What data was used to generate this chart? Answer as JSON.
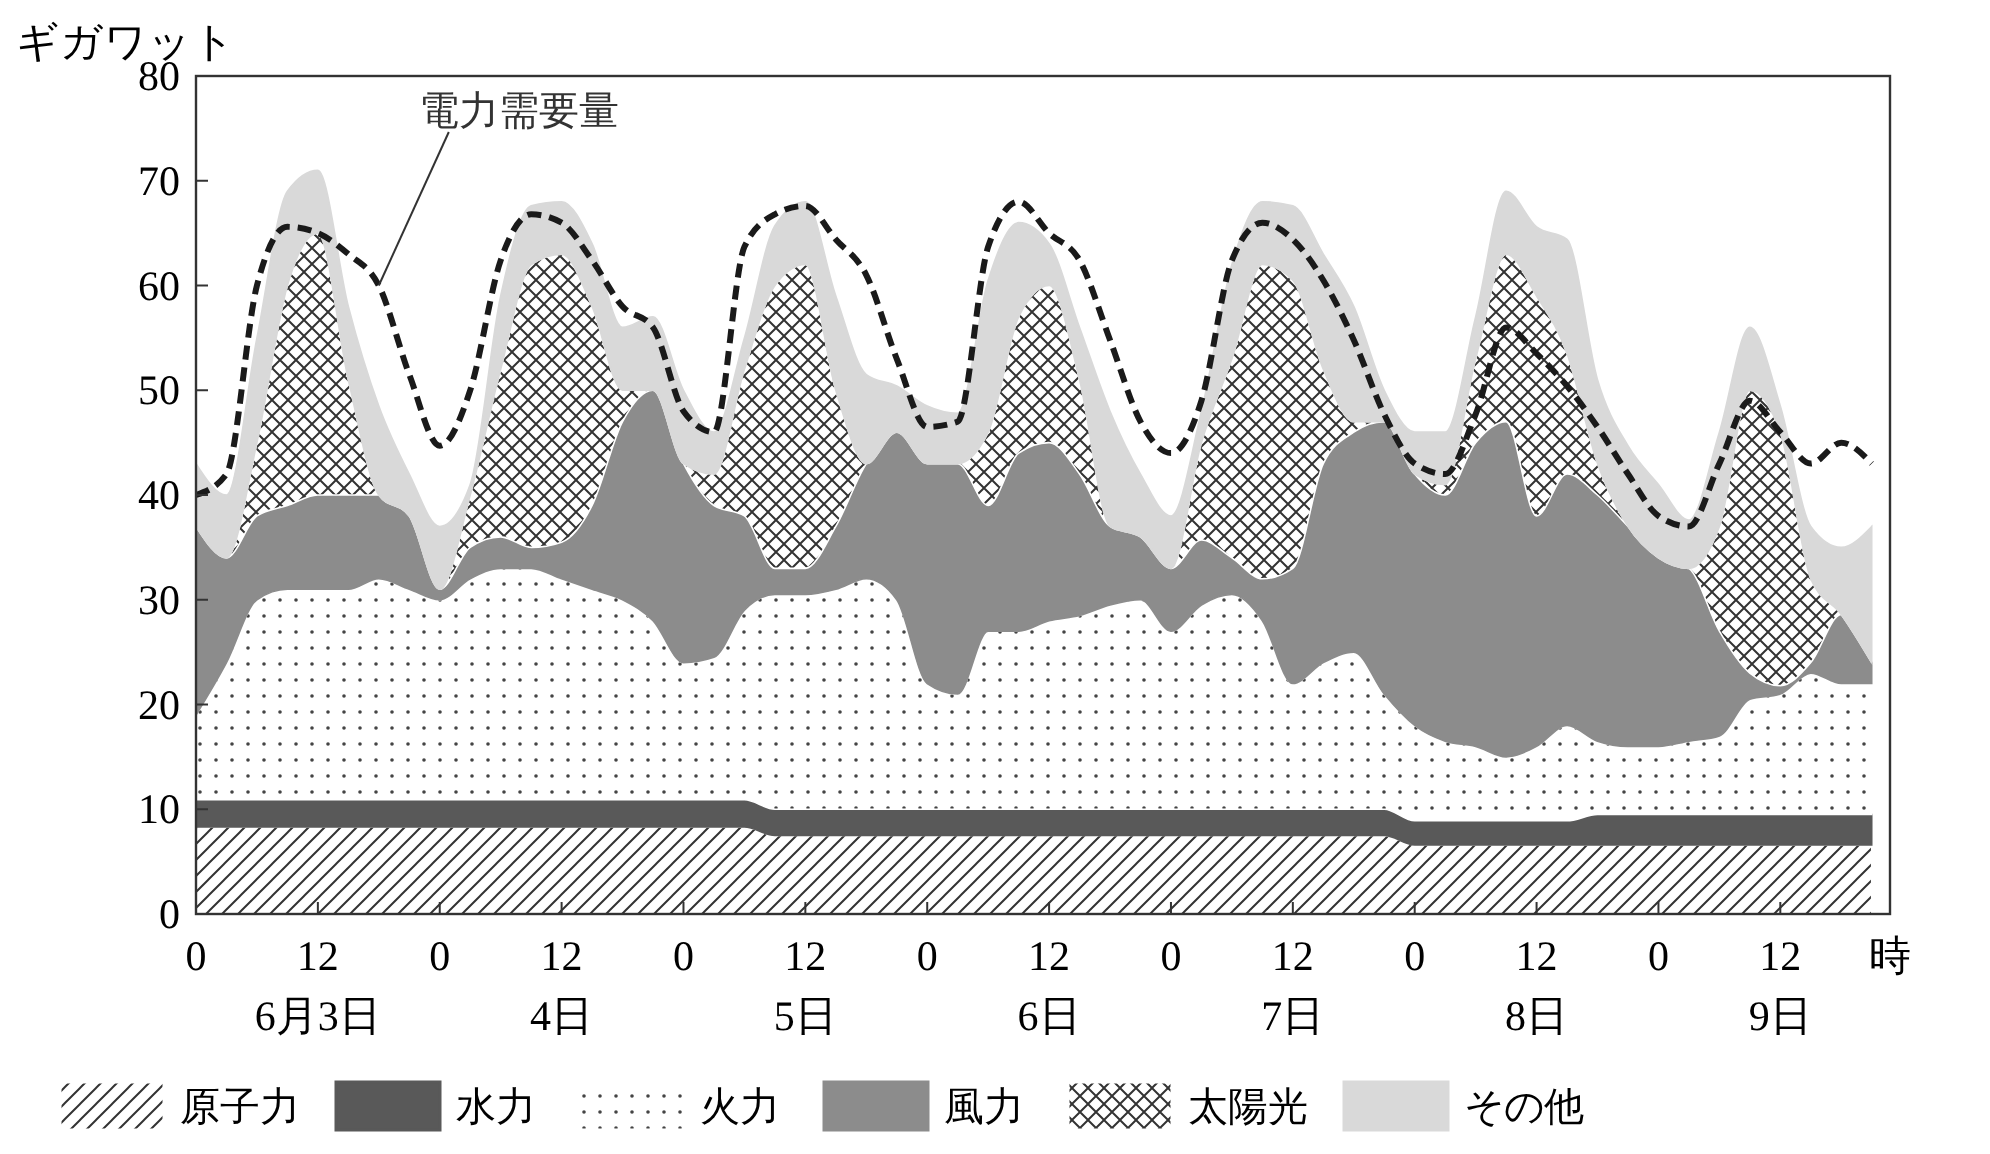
{
  "chart_data": {
    "type": "area",
    "stacked": true,
    "ylabel": "ギガワット",
    "xlabel": "時",
    "categories": [
      "0",
      null,
      null,
      null,
      "12\n6月3日",
      null,
      null,
      null,
      "0",
      null,
      null,
      null,
      "12\n4日",
      null,
      null,
      null,
      "0",
      null,
      null,
      null,
      "12\n5日",
      null,
      null,
      null,
      "0",
      null,
      null,
      null,
      "12\n6日",
      null,
      null,
      null,
      "0",
      null,
      null,
      null,
      "12\n7日",
      null,
      null,
      null,
      "0",
      null,
      null,
      null,
      "12\n8日",
      null,
      null,
      null,
      "0",
      null,
      null,
      null,
      "12\n9日",
      null,
      null,
      null
    ],
    "ylim": [
      0,
      80
    ],
    "yticks": [
      0,
      10,
      20,
      30,
      40,
      50,
      60,
      70,
      80
    ],
    "legend": "bottom",
    "grid": false,
    "series": [
      {
        "name": "原子力",
        "color": "#ffffff",
        "values": [
          8.3,
          8.3,
          8.3,
          8.3,
          8.3,
          8.3,
          8.3,
          8.3,
          8.3,
          8.3,
          8.3,
          8.3,
          8.3,
          8.3,
          8.3,
          8.3,
          8.3,
          8.3,
          8.3,
          7.5,
          7.5,
          7.5,
          7.5,
          7.5,
          7.5,
          7.5,
          7.5,
          7.5,
          7.5,
          7.5,
          7.5,
          7.5,
          7.5,
          7.5,
          7.5,
          7.5,
          7.5,
          7.5,
          7.5,
          7.5,
          6.6,
          6.6,
          6.6,
          6.6,
          6.6,
          6.6,
          6.6,
          6.6,
          6.6,
          6.6,
          6.6,
          6.6,
          6.6,
          6.6,
          6.6,
          6.6
        ]
      },
      {
        "name": "水力",
        "color": "#595959",
        "values": [
          2.6,
          2.6,
          2.6,
          2.6,
          2.6,
          2.6,
          2.6,
          2.6,
          2.6,
          2.6,
          2.6,
          2.6,
          2.6,
          2.6,
          2.6,
          2.6,
          2.6,
          2.6,
          2.6,
          2.5,
          2.5,
          2.5,
          2.5,
          2.5,
          2.5,
          2.5,
          2.5,
          2.5,
          2.5,
          2.5,
          2.5,
          2.5,
          2.5,
          2.5,
          2.5,
          2.5,
          2.5,
          2.5,
          2.5,
          2.5,
          2.3,
          2.3,
          2.3,
          2.3,
          2.3,
          2.3,
          2.9,
          2.9,
          2.9,
          2.9,
          2.9,
          2.9,
          2.9,
          2.9,
          2.9,
          2.9
        ]
      },
      {
        "name": "火力",
        "color": "#ffffff",
        "values": [
          8.1,
          13.1,
          19.1,
          20.1,
          20.1,
          20.1,
          21.1,
          20.1,
          19.1,
          21.1,
          22.1,
          22.1,
          21.1,
          20.1,
          19.1,
          17.1,
          13.1,
          13.6,
          18.1,
          20.5,
          20.5,
          21,
          22,
          20,
          12,
          11,
          17,
          17,
          18,
          18.5,
          19.5,
          20,
          17,
          19.5,
          20.5,
          18,
          12,
          14,
          15,
          11,
          9.1,
          7.6,
          7.1,
          6.1,
          7.1,
          9.1,
          7,
          6.5,
          6.5,
          7,
          7.5,
          11,
          11.5,
          13.5,
          12.5,
          12.5
        ]
      },
      {
        "name": "風力",
        "color": "#8c8c8c",
        "values": [
          18,
          10,
          8,
          8,
          9,
          9,
          8,
          7,
          1,
          3,
          3,
          2,
          3.5,
          8,
          17,
          22,
          19,
          14.5,
          9,
          2.5,
          2.5,
          6,
          11,
          16,
          21,
          22,
          12,
          17,
          17,
          13.5,
          7.5,
          6,
          6,
          6.2,
          3.5,
          4,
          11,
          19,
          21,
          26,
          24,
          23.5,
          29,
          32,
          22,
          24,
          23.5,
          21,
          18,
          16.5,
          10,
          2.5,
          0.8,
          1,
          6.6,
          2
        ]
      },
      {
        "name": "太陽光",
        "color": "#ffffff",
        "values": [
          0,
          0,
          7,
          21,
          25,
          11,
          0,
          0,
          0,
          5,
          16,
          27,
          27.5,
          19,
          3,
          0,
          0,
          3,
          14,
          27,
          29,
          13,
          0,
          0,
          0,
          0,
          7,
          13,
          15,
          9,
          0,
          0,
          0,
          9.3,
          19,
          30,
          27.5,
          9,
          1,
          0,
          0,
          1,
          8,
          16,
          21,
          11.5,
          3,
          0,
          0,
          0,
          10,
          27,
          24.2,
          8,
          0,
          0
        ]
      },
      {
        "name": "その他",
        "color": "#d9d9d9",
        "values": [
          6,
          6,
          10,
          9,
          6,
          7,
          8.5,
          4,
          6,
          1,
          7,
          5.6,
          5,
          6,
          6,
          7,
          7,
          4,
          3,
          5.7,
          6,
          9,
          8.5,
          4.4,
          5.5,
          4.8,
          14.5,
          9,
          4,
          5,
          11,
          6,
          5,
          3,
          9,
          6,
          7.1,
          11,
          11,
          3,
          4,
          5,
          4,
          6,
          6.6,
          10.9,
          8,
          7.7,
          7,
          4.6,
          9,
          6,
          2.5,
          5,
          6.4,
          13
        ]
      },
      {
        "name": "電力需要量",
        "type": "line",
        "line_style": "dashed",
        "color": "#1a1a1a",
        "values": [
          40,
          42,
          60,
          65.6,
          65,
          63,
          60,
          51.5,
          44.7,
          50,
          62.4,
          66.8,
          66,
          62.4,
          58,
          56,
          48,
          46,
          63.7,
          66.8,
          67.6,
          64.4,
          61,
          53,
          46.5,
          47,
          63.7,
          68,
          65,
          62.4,
          54.8,
          47,
          44,
          49,
          62.4,
          66,
          64.4,
          60.5,
          54.8,
          47.7,
          43,
          42,
          47.7,
          56,
          53.5,
          50.4,
          46.5,
          42,
          38,
          37,
          43,
          49,
          46,
          43,
          45,
          43
        ]
      }
    ]
  }
}
